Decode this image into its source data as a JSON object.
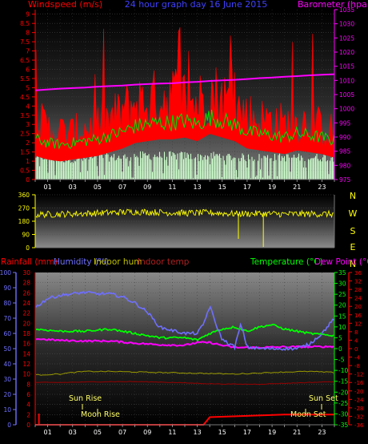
{
  "header": {
    "wind_label": "Windspeed (m/s)",
    "title": "24 hour graph day  16 June 2015",
    "baro_label": "Barometer (hpa)"
  },
  "lower_header": {
    "rain_label": "Rainfall (mm)",
    "humidity_label": "Humidity (%)",
    "indoor_hum_label": "Indoor hum",
    "indoor_temp_label": "Indoor temp",
    "temp_label": "Temperature (°C)",
    "dew_label": "Dew Point (°C)"
  },
  "compass": [
    "N",
    "W",
    "S",
    "E",
    "N"
  ],
  "astro": {
    "sun_rise": "Sun Rise",
    "sun_set": "Sun Set",
    "moon_rise": "Moon Rise",
    "moon_set": "Moon Set"
  },
  "colors": {
    "wind": "#ff0000",
    "gust_fill": "#ff0000",
    "avg_wind": "#00dd00",
    "wind_min": "#ccffcc",
    "barometer": "#ff00ff",
    "direction": "#ffff00",
    "humidity": "#6f6fff",
    "temperature": "#00ff00",
    "dew_point": "#ff00ff",
    "indoor_hum": "#999900",
    "indoor_temp": "#990000",
    "rain": "#ff0000"
  },
  "chart_data": [
    {
      "type": "line",
      "name": "wind_barometer",
      "x_ticks": [
        "01",
        "03",
        "05",
        "07",
        "09",
        "11",
        "13",
        "15",
        "17",
        "19",
        "21",
        "23"
      ],
      "y_left_ticks": [
        "0",
        "0.5",
        "1",
        "1.5",
        "2",
        "2.5",
        "3",
        "3.5",
        "4",
        "4.5",
        "5",
        "5.5",
        "6",
        "6.5",
        "7",
        "7.5",
        "8",
        "8.5",
        "9"
      ],
      "y_left_range": [
        0,
        9.25
      ],
      "y_right_ticks": [
        "975",
        "980",
        "985",
        "990",
        "995",
        "1000",
        "1005",
        "1010",
        "1015",
        "1020",
        "1025",
        "1030",
        "1035"
      ],
      "y_right_range": [
        975,
        1035
      ],
      "series": [
        {
          "key": "gust",
          "hours": [
            0,
            1,
            2,
            3,
            4,
            5,
            6,
            7,
            8,
            9,
            10,
            11,
            12,
            13,
            14,
            15,
            16,
            17,
            18,
            19,
            20,
            21,
            22,
            23,
            24
          ],
          "values": [
            3.5,
            3.0,
            2.8,
            2.7,
            3.0,
            3.2,
            3.5,
            4.0,
            4.5,
            4.5,
            4.8,
            5.0,
            4.8,
            4.5,
            5.2,
            4.8,
            4.3,
            3.8,
            3.5,
            3.5,
            3.2,
            3.3,
            3.4,
            3.0,
            2.8
          ]
        },
        {
          "key": "avg",
          "hours": [
            0,
            1,
            2,
            3,
            4,
            5,
            6,
            7,
            8,
            9,
            10,
            11,
            12,
            13,
            14,
            15,
            16,
            17,
            18,
            19,
            20,
            21,
            22,
            23,
            24
          ],
          "values": [
            2.2,
            2.0,
            1.9,
            2.0,
            2.1,
            2.2,
            2.4,
            2.6,
            2.9,
            3.0,
            3.1,
            3.1,
            3.2,
            3.0,
            3.4,
            3.2,
            3.0,
            2.6,
            2.5,
            2.4,
            2.3,
            2.5,
            2.4,
            2.3,
            2.1
          ]
        },
        {
          "key": "min",
          "hours": [
            0,
            1,
            2,
            3,
            4,
            5,
            6,
            7,
            8,
            9,
            10,
            11,
            12,
            13,
            14,
            15,
            16,
            17,
            18,
            19,
            20,
            21,
            22,
            23,
            24
          ],
          "values": [
            1.4,
            1.3,
            1.2,
            1.2,
            1.2,
            1.3,
            1.3,
            1.3,
            1.4,
            1.4,
            1.4,
            1.4,
            1.4,
            1.3,
            1.4,
            1.4,
            1.3,
            1.3,
            1.3,
            1.3,
            1.3,
            1.3,
            1.3,
            1.3,
            1.3
          ]
        },
        {
          "key": "barometer",
          "hours": [
            0,
            1,
            2,
            3,
            4,
            5,
            6,
            7,
            8,
            9,
            10,
            11,
            12,
            13,
            14,
            15,
            16,
            17,
            18,
            19,
            20,
            21,
            22,
            23,
            24
          ],
          "values": [
            1006.5,
            1006.8,
            1007.1,
            1007.3,
            1007.5,
            1007.8,
            1008.0,
            1008.2,
            1008.5,
            1008.7,
            1008.9,
            1009.0,
            1009.3,
            1009.5,
            1009.8,
            1010.0,
            1010.2,
            1010.5,
            1010.8,
            1011.0,
            1011.3,
            1011.5,
            1011.8,
            1012.0,
            1012.2
          ]
        }
      ]
    },
    {
      "type": "line",
      "name": "wind_direction",
      "y_ticks": [
        "0",
        "90",
        "180",
        "270",
        "360"
      ],
      "y_range": [
        0,
        360
      ],
      "series": [
        {
          "key": "direction",
          "hours": [
            0,
            2,
            4,
            6,
            8,
            10,
            12,
            14,
            16,
            18,
            20,
            22,
            24
          ],
          "values": [
            225,
            228,
            232,
            238,
            245,
            240,
            235,
            238,
            230,
            232,
            228,
            230,
            228
          ]
        }
      ]
    },
    {
      "type": "line",
      "name": "temp_humidity_rain",
      "y_rain_ticks": [
        "0",
        "2",
        "4",
        "6",
        "8",
        "10",
        "12",
        "14",
        "16",
        "18",
        "20",
        "22",
        "24",
        "26",
        "28",
        "30"
      ],
      "y_rain_range": [
        0,
        30
      ],
      "y_hum_ticks": [
        "0",
        "10",
        "20",
        "30",
        "40",
        "50",
        "60",
        "70",
        "80",
        "90",
        "100"
      ],
      "y_temp_ticks": [
        "-35",
        "-30",
        "-25",
        "-20",
        "-15",
        "-10",
        "-5",
        "0",
        "5",
        "10",
        "15",
        "20",
        "25",
        "30",
        "35"
      ],
      "y_temp_range": [
        -35,
        35
      ],
      "y_dew_ticks": [
        "-36",
        "-32",
        "-28",
        "-24",
        "-20",
        "-16",
        "-12",
        "-8",
        "-4",
        "0",
        "4",
        "8",
        "12",
        "16",
        "20",
        "24",
        "28",
        "32",
        "36"
      ],
      "series": [
        {
          "key": "humidity",
          "hours": [
            0,
            1,
            2,
            3,
            4,
            5,
            6,
            7,
            8,
            9,
            10,
            11,
            12,
            13,
            13.5,
            14,
            14.5,
            15,
            16,
            16.5,
            17,
            18,
            19,
            20,
            21,
            22,
            23,
            24
          ],
          "values": [
            77,
            83,
            85,
            86,
            87,
            86,
            86,
            84,
            80,
            74,
            64,
            62,
            60,
            60,
            66,
            78,
            66,
            56,
            51,
            66,
            51,
            50,
            50,
            50,
            50,
            53,
            60,
            70
          ]
        },
        {
          "key": "temperature",
          "hours": [
            0,
            2,
            4,
            6,
            7,
            8,
            10,
            12,
            13,
            14,
            15,
            16,
            17,
            18,
            19,
            20,
            22,
            24
          ],
          "values": [
            9,
            8,
            8,
            9,
            8,
            7,
            5,
            5,
            4,
            7,
            9,
            10,
            8,
            10,
            11,
            9,
            7,
            6
          ]
        },
        {
          "key": "dew_point",
          "hours": [
            0,
            2,
            4,
            6,
            8,
            10,
            12,
            13,
            14,
            15,
            16,
            18,
            20,
            22,
            24
          ],
          "values": [
            4.5,
            3.8,
            3.5,
            3.5,
            2.5,
            1.8,
            1.5,
            2.8,
            2.8,
            1.5,
            0.5,
            0.5,
            0.8,
            0.8,
            1.0
          ]
        },
        {
          "key": "indoor_hum",
          "hours": [
            0,
            2,
            3,
            4,
            6,
            8,
            10,
            12,
            14,
            16,
            18,
            20,
            22,
            24
          ],
          "values": [
            9.8,
            10.0,
            10.3,
            10.5,
            10.5,
            10.4,
            10.3,
            10.2,
            10.1,
            10.0,
            10.2,
            10.4,
            10.5,
            10.3
          ]
        },
        {
          "key": "indoor_temp",
          "hours": [
            0,
            2,
            4,
            6,
            8,
            10,
            12,
            14,
            16,
            18,
            20,
            22,
            24
          ],
          "values": [
            -16,
            -16,
            -15.8,
            -15.6,
            -15.6,
            -15.8,
            -16.2,
            -16.6,
            -16.8,
            -16.8,
            -16.4,
            -16.0,
            -15.6
          ]
        },
        {
          "key": "rain",
          "hours": [
            0,
            0.3,
            0.3,
            13.5,
            14,
            20,
            24
          ],
          "values": [
            0,
            0,
            0,
            0,
            1.5,
            2.0,
            2.0
          ]
        }
      ]
    }
  ]
}
